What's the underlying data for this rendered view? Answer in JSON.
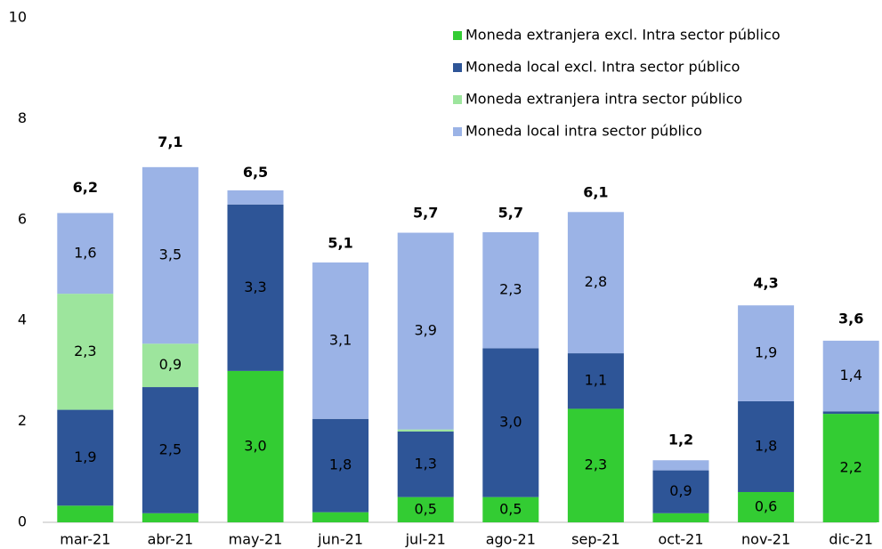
{
  "chart_data": {
    "type": "stacked_bar",
    "categories": [
      "mar-21",
      "abr-21",
      "may-21",
      "jun-21",
      "jul-21",
      "ago-21",
      "sep-21",
      "oct-21",
      "nov-21",
      "dic-21"
    ],
    "series": [
      {
        "name": "Moneda extranjera excl. Intra sector público",
        "color": "#33cc33",
        "values": [
          0.33,
          0.18,
          3.0,
          0.2,
          0.5,
          0.5,
          2.25,
          0.18,
          0.6,
          2.15
        ],
        "value_labels": [
          null,
          null,
          "3,0",
          null,
          "0,5",
          "0,5",
          "2,3",
          null,
          "0,6",
          "2,2"
        ]
      },
      {
        "name": "Moneda local excl. Intra sector público",
        "color": "#2e5597",
        "values": [
          1.9,
          2.5,
          3.3,
          1.85,
          1.3,
          2.95,
          1.1,
          0.85,
          1.8,
          0.05
        ],
        "value_labels": [
          "1,9",
          "2,5",
          "3,3",
          "1,8",
          "1,3",
          "3,0",
          "1,1",
          "0,9",
          "1,8",
          null
        ]
      },
      {
        "name": "Moneda extranjera intra sector público",
        "color": "#9de59d",
        "values": [
          2.3,
          0.86,
          0,
          0,
          0.04,
          0,
          0,
          0,
          0,
          0
        ],
        "value_labels": [
          "2,3",
          "0,9",
          null,
          null,
          null,
          null,
          null,
          null,
          null,
          null
        ]
      },
      {
        "name": "Moneda local intra sector público",
        "color": "#9bb3e6",
        "values": [
          1.6,
          3.5,
          0.28,
          3.1,
          3.9,
          2.3,
          2.8,
          0.2,
          1.9,
          1.4
        ],
        "value_labels": [
          "1,6",
          "3,5",
          null,
          "3,1",
          "3,9",
          "2,3",
          "2,8",
          null,
          "1,9",
          "1,4"
        ]
      }
    ],
    "totals": [
      6.2,
      7.1,
      6.5,
      5.1,
      5.7,
      5.7,
      6.1,
      1.2,
      4.3,
      3.6
    ],
    "total_labels": [
      "6,2",
      "7,1",
      "6,5",
      "5,1",
      "5,7",
      "5,7",
      "6,1",
      "1,2",
      "4,3",
      "3,6"
    ],
    "ylim": [
      0,
      10
    ],
    "yticks": [
      0,
      2,
      4,
      6,
      8,
      10
    ],
    "grid": false,
    "legend": "top-right"
  }
}
